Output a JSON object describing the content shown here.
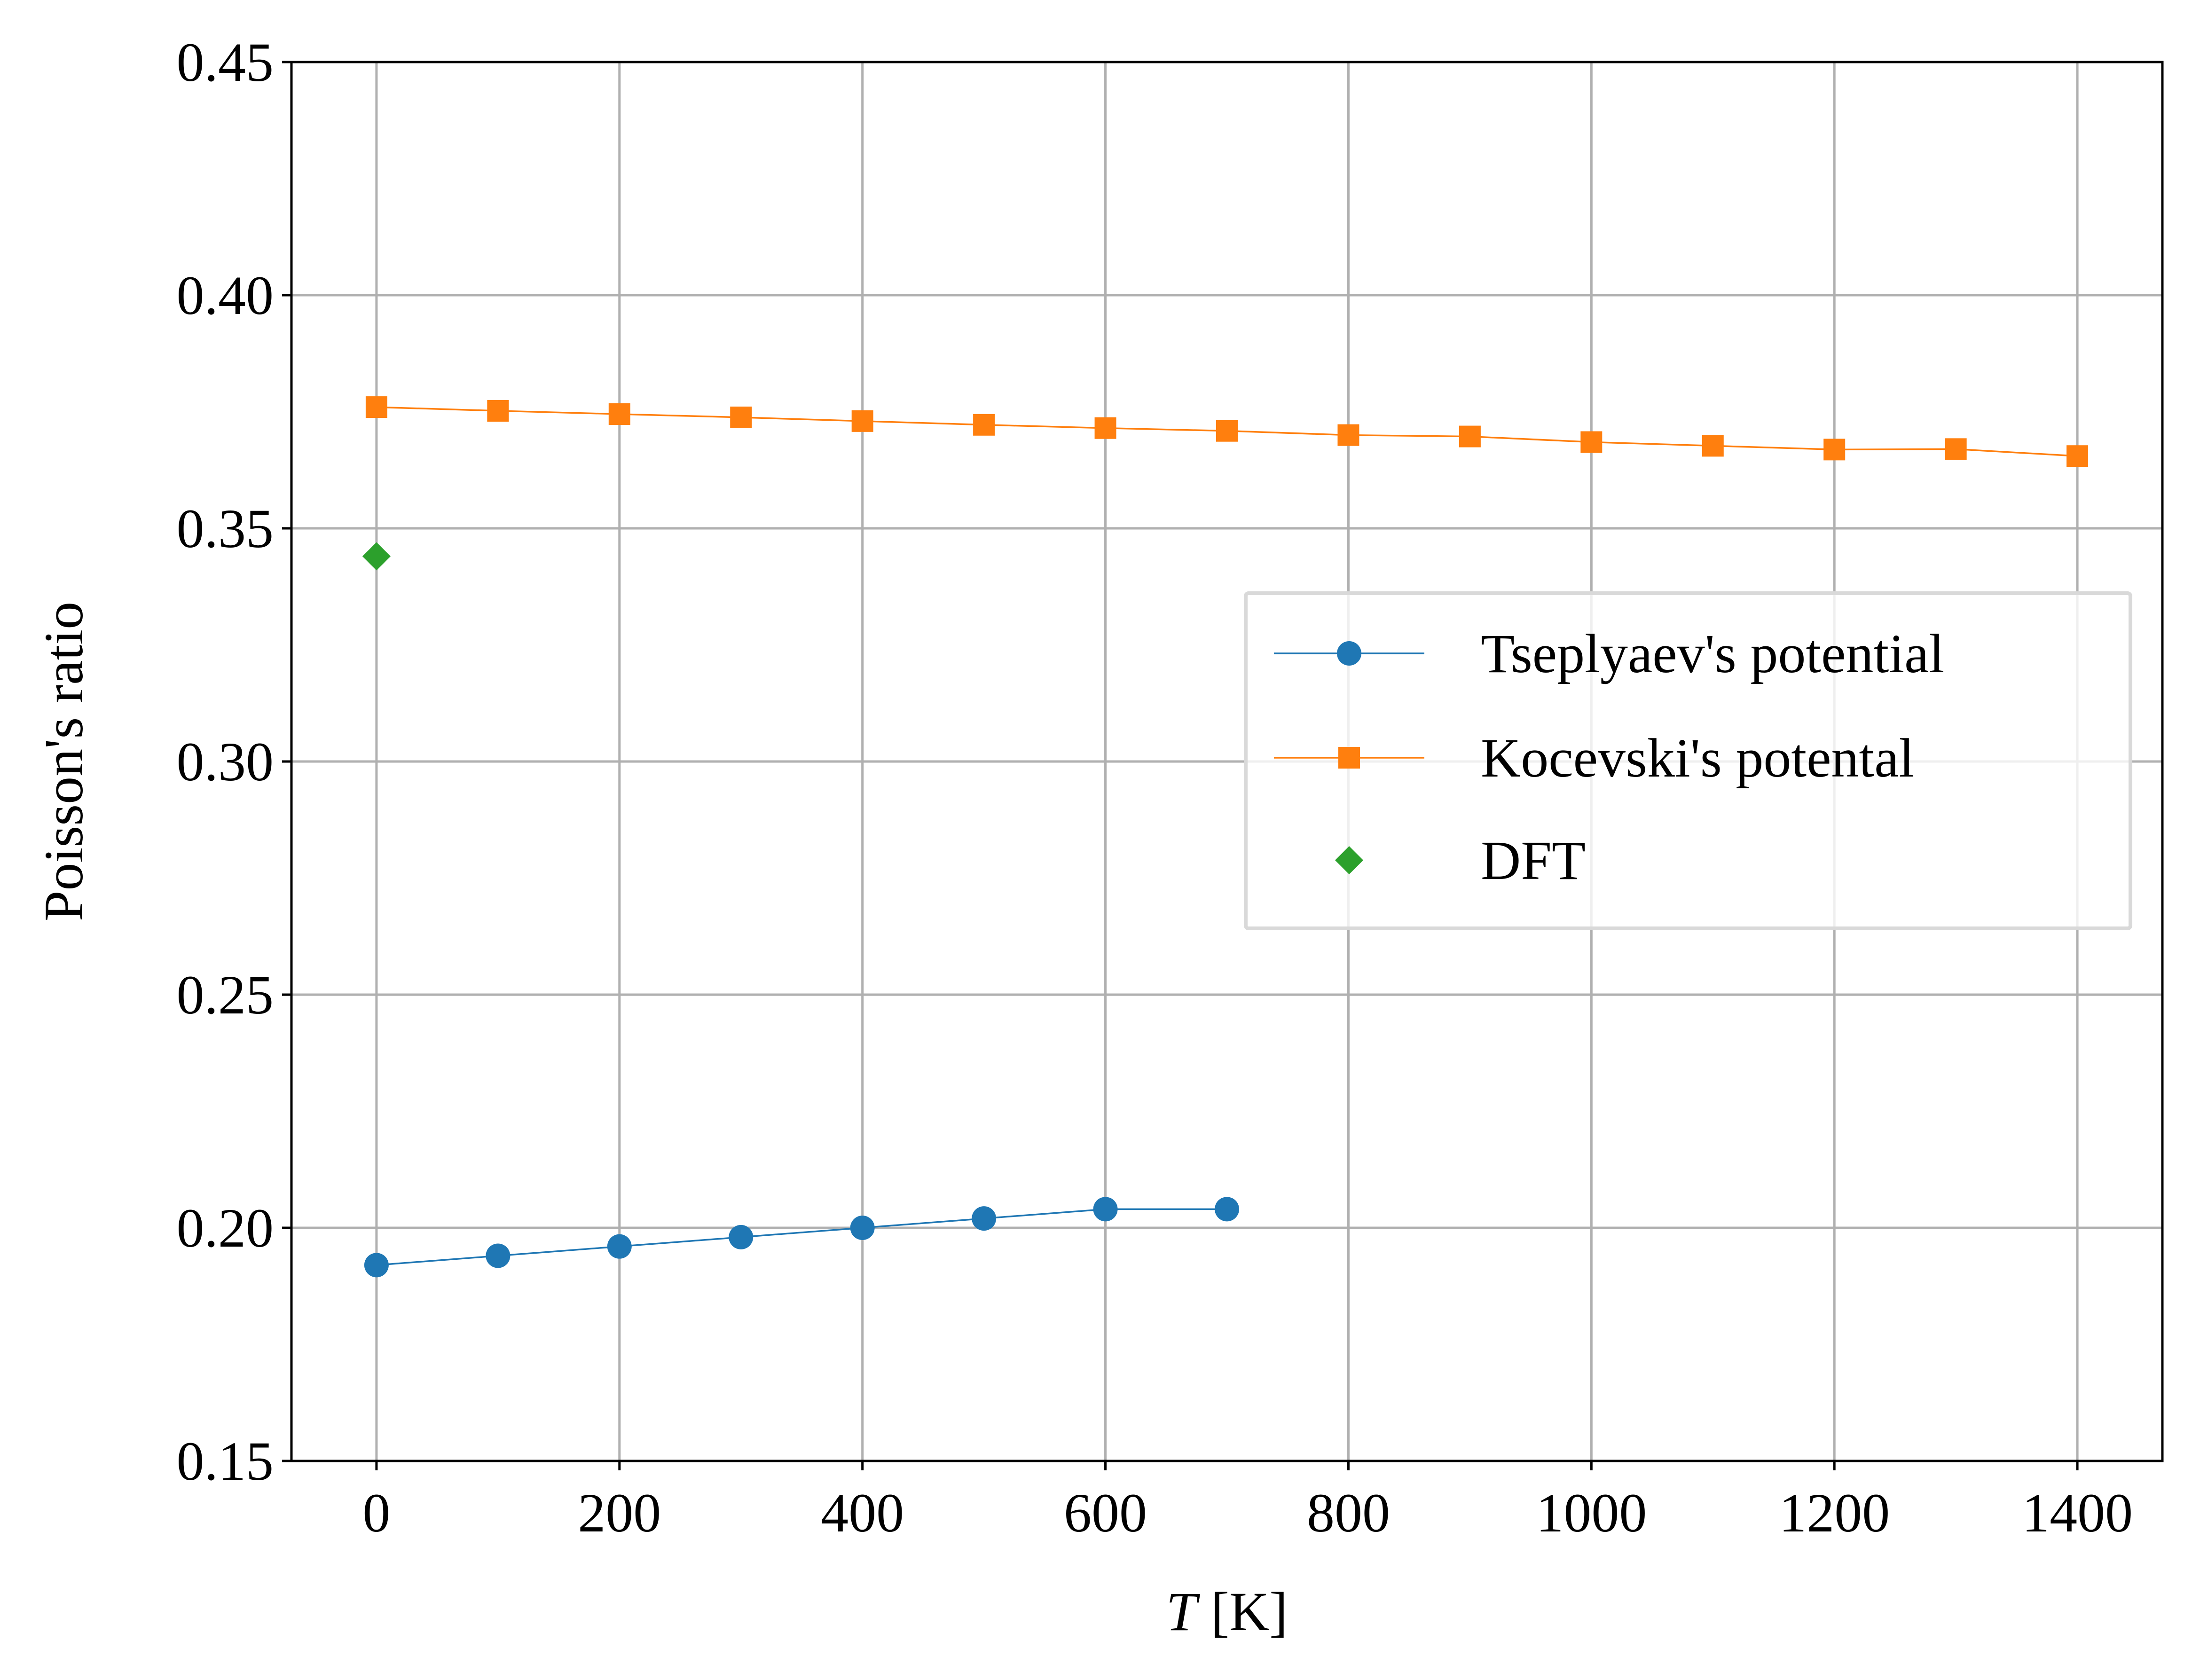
{
  "chart_data": {
    "type": "line",
    "xlabel": {
      "var": "T",
      "unit": " [K]"
    },
    "ylabel": "Poisson's ratio",
    "xlim": [
      -70,
      1470
    ],
    "ylim": [
      0.15,
      0.45
    ],
    "xticks": [
      0,
      200,
      400,
      600,
      800,
      1000,
      1200,
      1400
    ],
    "xtick_labels": [
      "0",
      "200",
      "400",
      "600",
      "800",
      "1000",
      "1200",
      "1400"
    ],
    "yticks": [
      0.15,
      0.2,
      0.25,
      0.3,
      0.35,
      0.4,
      0.45
    ],
    "ytick_labels": [
      "0.15",
      "0.20",
      "0.25",
      "0.30",
      "0.35",
      "0.40",
      "0.45"
    ],
    "grid": true,
    "legend_position": "center-right",
    "series": [
      {
        "name": "Tseplyaev's potential",
        "color": "#1f77b4",
        "marker": "circle",
        "line": true,
        "x": [
          0,
          100,
          200,
          300,
          400,
          500,
          600,
          700
        ],
        "y": [
          0.192,
          0.194,
          0.196,
          0.198,
          0.2,
          0.202,
          0.204,
          0.204
        ]
      },
      {
        "name": "Kocevski's potental",
        "color": "#ff7f0e",
        "marker": "square",
        "line": true,
        "x": [
          0,
          100,
          200,
          300,
          400,
          500,
          600,
          700,
          800,
          900,
          1000,
          1100,
          1200,
          1300,
          1400
        ],
        "y": [
          0.376,
          0.3752,
          0.3745,
          0.3738,
          0.373,
          0.3722,
          0.3715,
          0.3709,
          0.37,
          0.3697,
          0.3685,
          0.3677,
          0.3669,
          0.367,
          0.3655
        ]
      },
      {
        "name": "DFT",
        "color": "#2ca02c",
        "marker": "diamond",
        "line": false,
        "x": [
          0
        ],
        "y": [
          0.344
        ]
      }
    ]
  }
}
